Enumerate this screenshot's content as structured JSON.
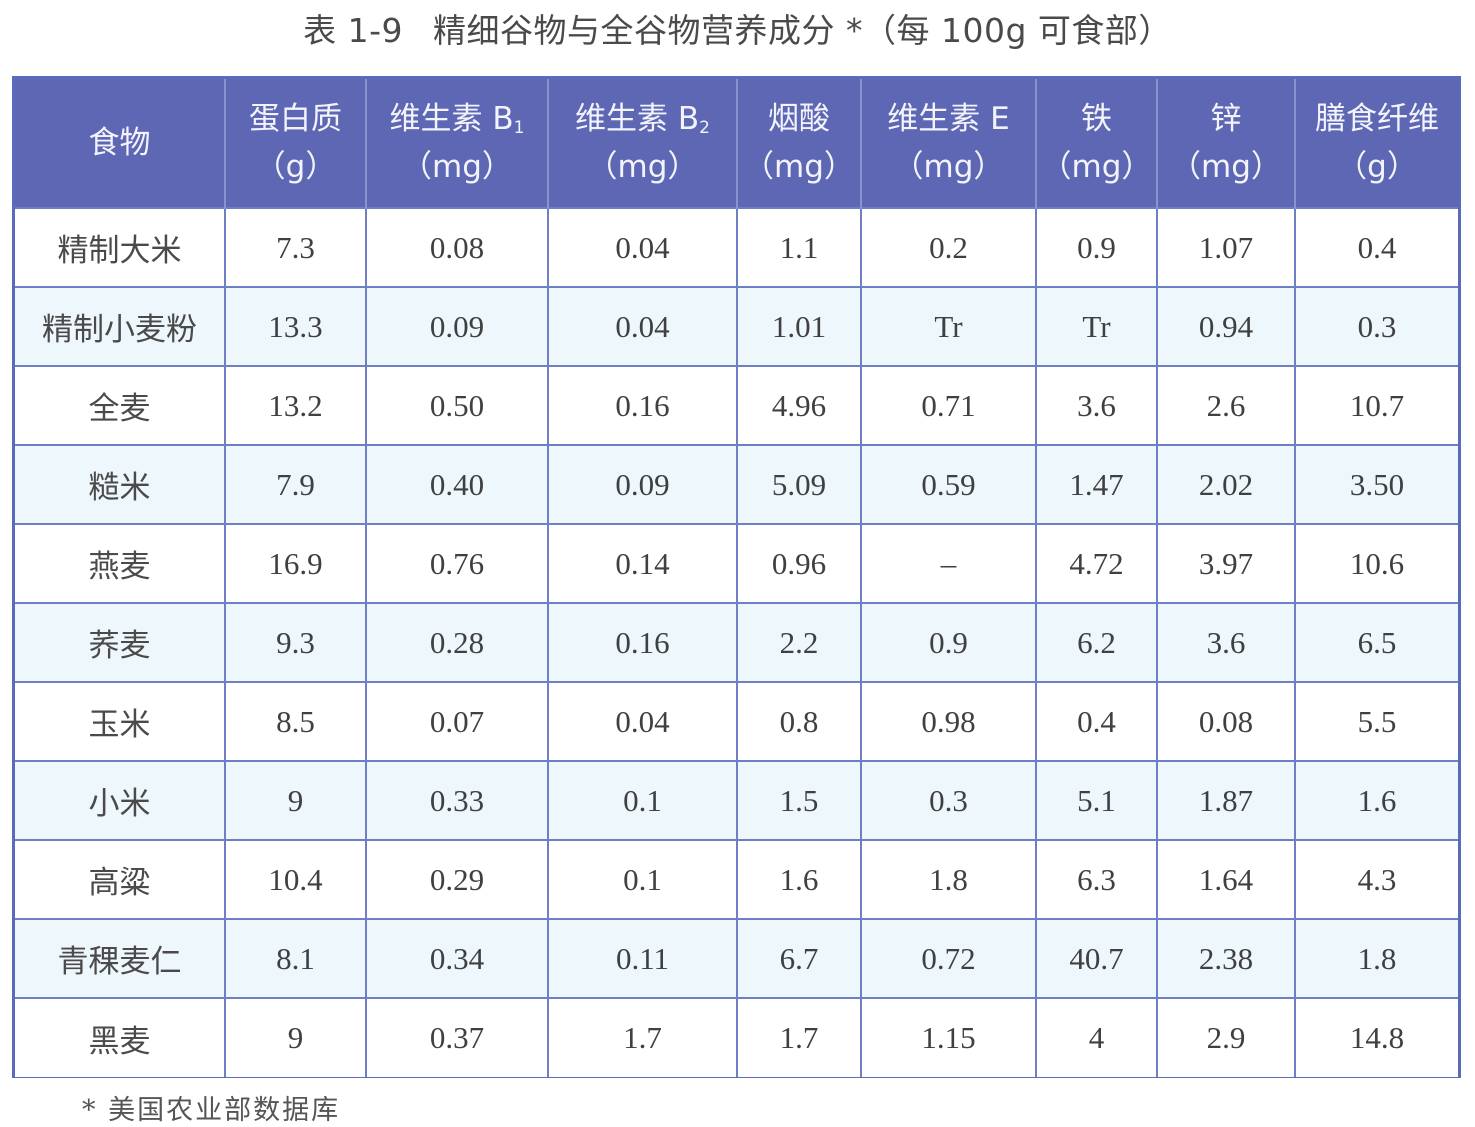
{
  "caption": {
    "number": "表 1-9",
    "title": "精细谷物与全谷物营养成分 *（每 100g 可食部）"
  },
  "table": {
    "header": [
      {
        "name": "食物",
        "sub": "",
        "unit": ""
      },
      {
        "name": "蛋白质",
        "sub": "",
        "unit": "（g）"
      },
      {
        "name": "维生素 B",
        "sub": "1",
        "unit": "（mg）"
      },
      {
        "name": "维生素 B",
        "sub": "2",
        "unit": "（mg）"
      },
      {
        "name": "烟酸",
        "sub": "",
        "unit": "（mg）"
      },
      {
        "name": "维生素 E",
        "sub": "",
        "unit": "（mg）"
      },
      {
        "name": "铁",
        "sub": "",
        "unit": "（mg）"
      },
      {
        "name": "锌",
        "sub": "",
        "unit": "（mg）"
      },
      {
        "name": "膳食纤维",
        "sub": "",
        "unit": "（g）"
      }
    ],
    "rows": [
      [
        "精制大米",
        "7.3",
        "0.08",
        "0.04",
        "1.1",
        "0.2",
        "0.9",
        "1.07",
        "0.4"
      ],
      [
        "精制小麦粉",
        "13.3",
        "0.09",
        "0.04",
        "1.01",
        "Tr",
        "Tr",
        "0.94",
        "0.3"
      ],
      [
        "全麦",
        "13.2",
        "0.50",
        "0.16",
        "4.96",
        "0.71",
        "3.6",
        "2.6",
        "10.7"
      ],
      [
        "糙米",
        "7.9",
        "0.40",
        "0.09",
        "5.09",
        "0.59",
        "1.47",
        "2.02",
        "3.50"
      ],
      [
        "燕麦",
        "16.9",
        "0.76",
        "0.14",
        "0.96",
        "–",
        "4.72",
        "3.97",
        "10.6"
      ],
      [
        "荞麦",
        "9.3",
        "0.28",
        "0.16",
        "2.2",
        "0.9",
        "6.2",
        "3.6",
        "6.5"
      ],
      [
        "玉米",
        "8.5",
        "0.07",
        "0.04",
        "0.8",
        "0.98",
        "0.4",
        "0.08",
        "5.5"
      ],
      [
        "小米",
        "9",
        "0.33",
        "0.1",
        "1.5",
        "0.3",
        "5.1",
        "1.87",
        "1.6"
      ],
      [
        "高粱",
        "10.4",
        "0.29",
        "0.1",
        "1.6",
        "1.8",
        "6.3",
        "1.64",
        "4.3"
      ],
      [
        "青稞麦仁",
        "8.1",
        "0.34",
        "0.11",
        "6.7",
        "0.72",
        "40.7",
        "2.38",
        "1.8"
      ],
      [
        "黑麦",
        "9",
        "0.37",
        "1.7",
        "1.7",
        "1.15",
        "4",
        "2.9",
        "14.8"
      ]
    ]
  },
  "footnote": "* 美国农业部数据库",
  "colors": {
    "header_bg": "#5d67b3",
    "header_text": "#f2f3fb",
    "grid_line": "#6f7fc6",
    "row_alt_bg": "#eef7fc",
    "row_bg": "#ffffff"
  }
}
